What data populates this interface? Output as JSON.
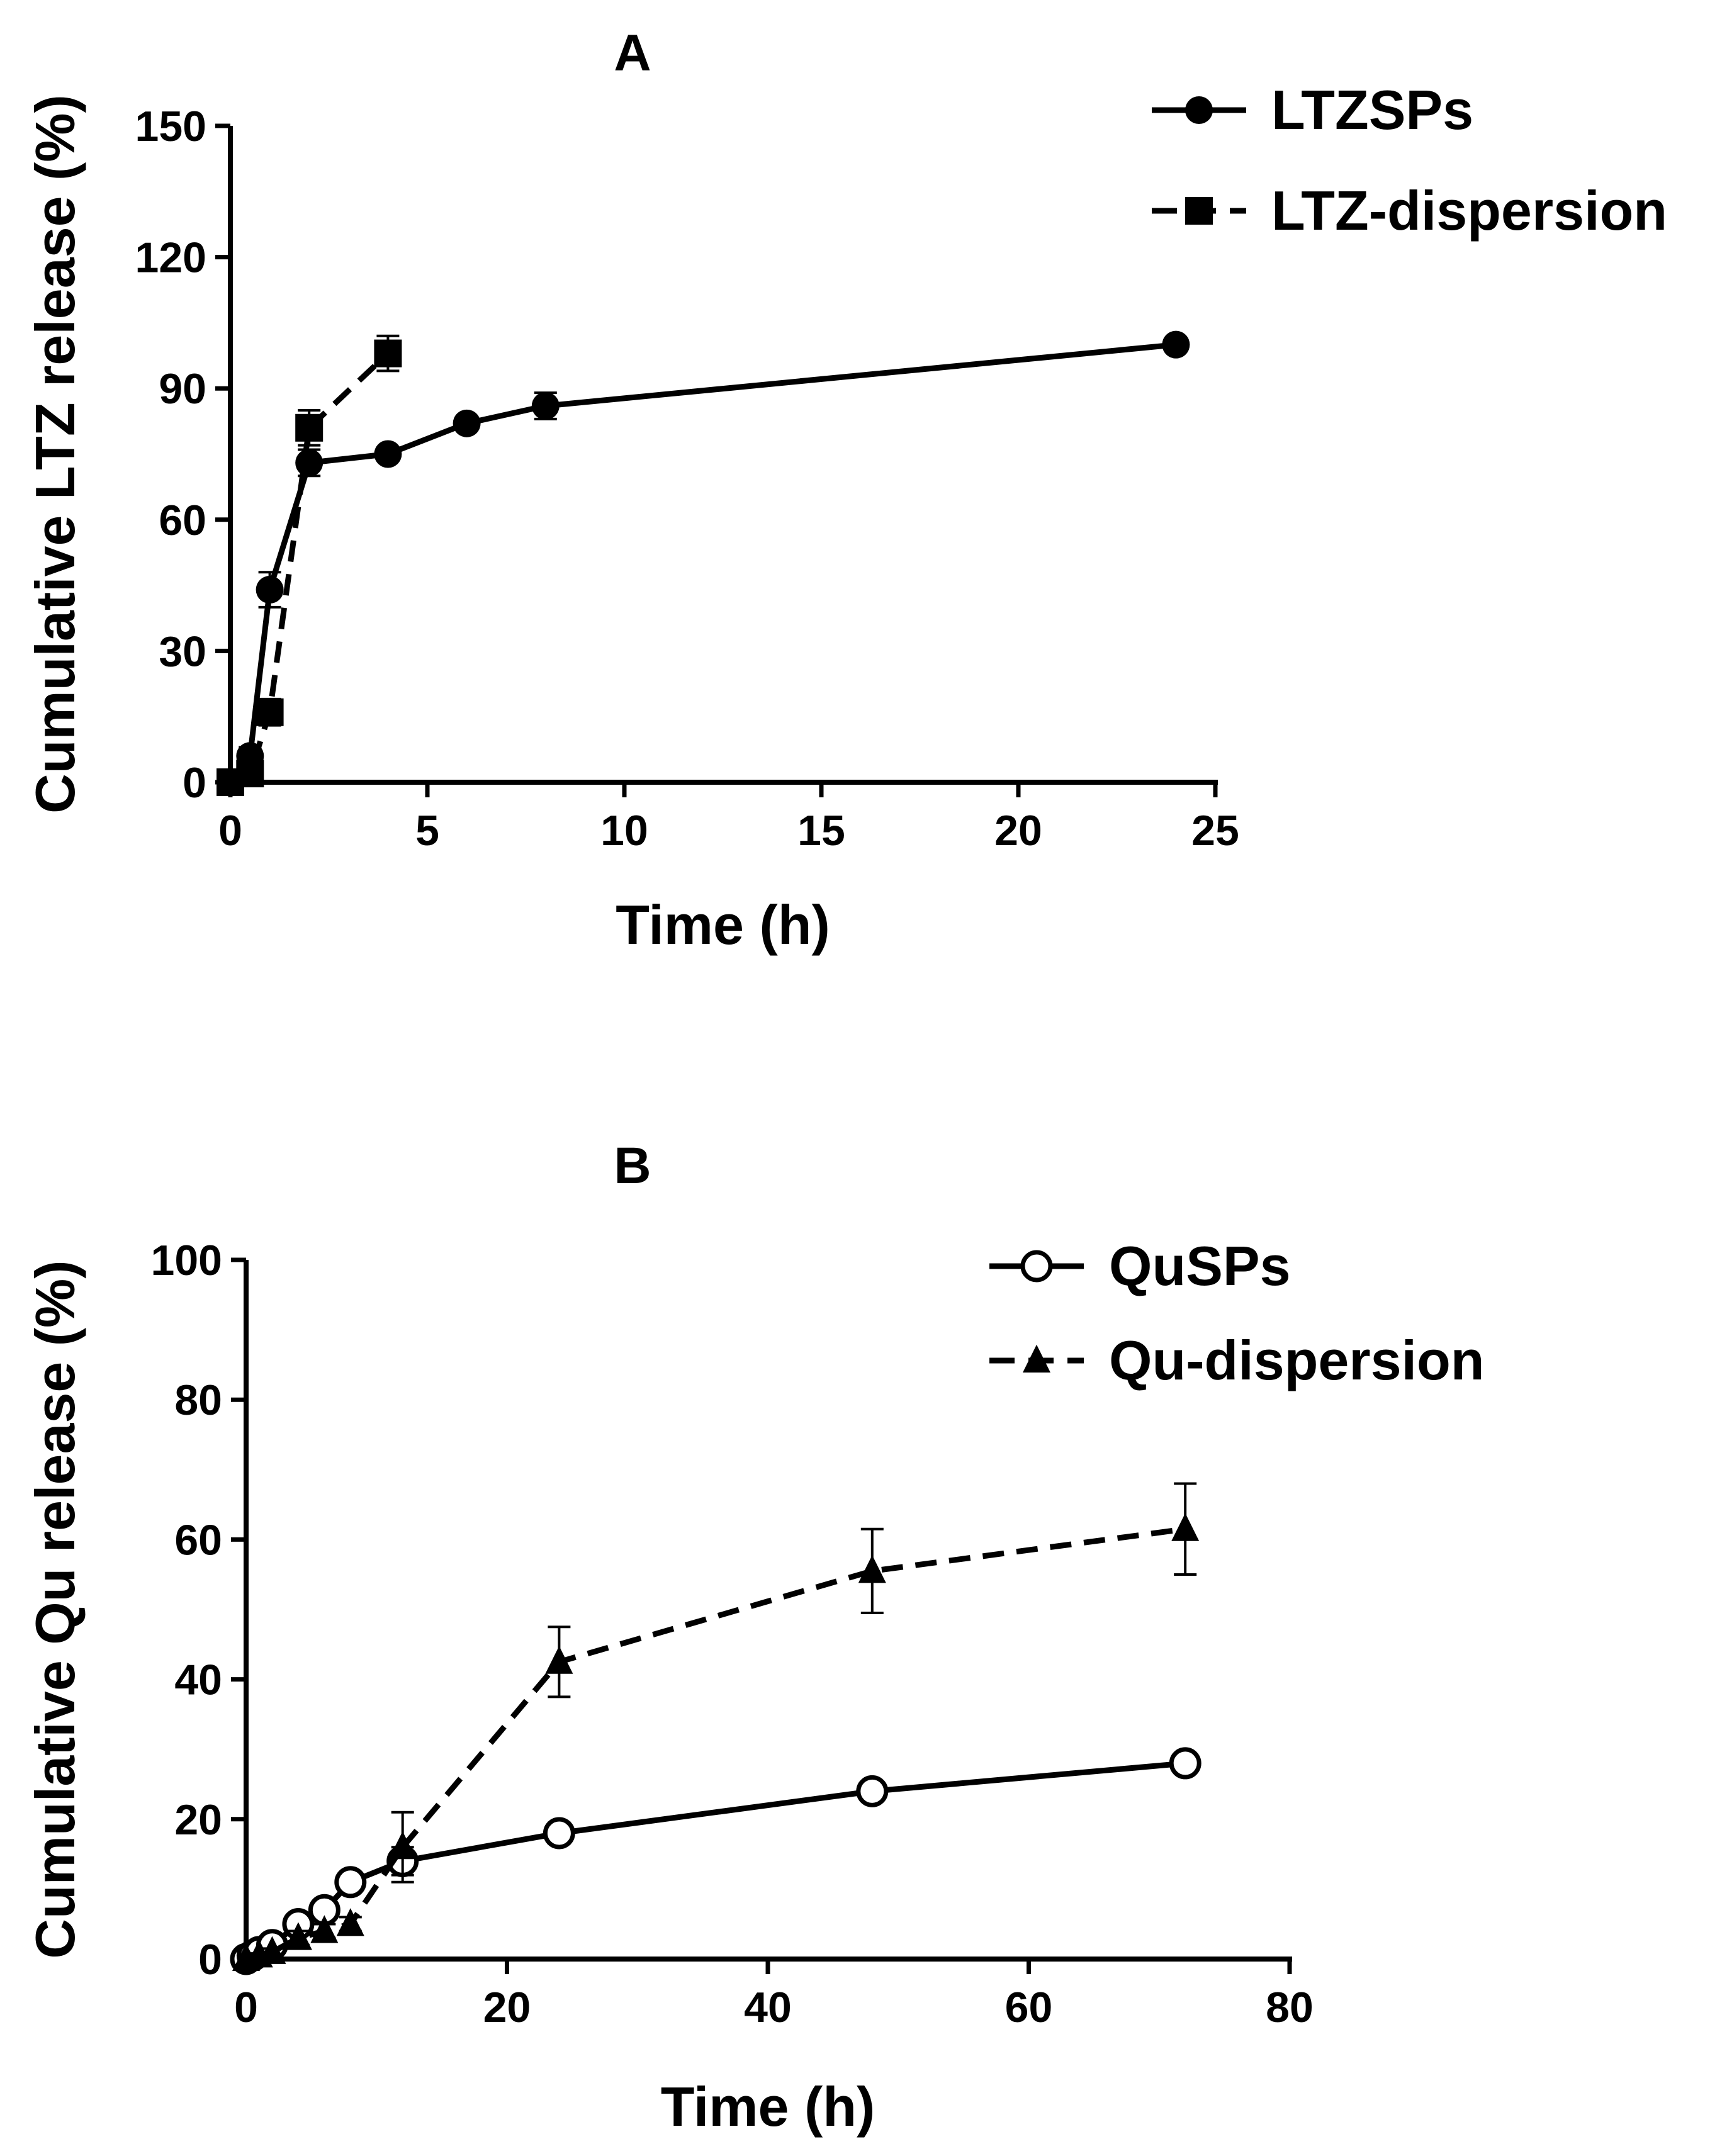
{
  "colors": {
    "ink": "#000000",
    "background": "#ffffff"
  },
  "chart_data": [
    {
      "type": "line",
      "title": "A",
      "xlabel": "Time (h)",
      "ylabel": "Cumulative LTZ release (%)",
      "xlim": [
        0,
        25
      ],
      "ylim": [
        0,
        150
      ],
      "xticks": [
        "0",
        "5",
        "10",
        "15",
        "20",
        "25"
      ],
      "yticks": [
        "0",
        "30",
        "60",
        "90",
        "120",
        "150"
      ],
      "grid": false,
      "legend_position": "top-right",
      "series": [
        {
          "name": "LTZSPs",
          "marker": "filled-circle",
          "line_style": "solid",
          "x": [
            0,
            0.5,
            1,
            2,
            4,
            6,
            8,
            24
          ],
          "y": [
            0,
            6,
            44,
            73,
            75,
            82,
            86,
            100
          ],
          "error": [
            0,
            2,
            4,
            3,
            1.5,
            1.5,
            3,
            1
          ]
        },
        {
          "name": "LTZ-dispersion",
          "marker": "filled-square",
          "line_style": "dashed",
          "x": [
            0,
            0.5,
            1,
            2,
            4
          ],
          "y": [
            0,
            2,
            16,
            81,
            98
          ],
          "error": [
            0,
            1,
            3,
            4,
            4
          ]
        }
      ]
    },
    {
      "type": "line",
      "title": "B",
      "xlabel": "Time (h)",
      "ylabel": "Cumulative Qu release (%)",
      "xlim": [
        0,
        80
      ],
      "ylim": [
        0,
        100
      ],
      "xticks": [
        "0",
        "20",
        "40",
        "60",
        "80"
      ],
      "yticks": [
        "0",
        "20",
        "40",
        "60",
        "80",
        "100"
      ],
      "grid": false,
      "legend_position": "top-right",
      "series": [
        {
          "name": "QuSPs",
          "marker": "open-circle",
          "line_style": "solid",
          "x": [
            0,
            0.5,
            1,
            2,
            4,
            6,
            8,
            12,
            24,
            48,
            72
          ],
          "y": [
            0,
            0.5,
            1,
            2,
            5,
            7,
            11,
            14,
            18,
            24,
            28
          ],
          "error": [
            0,
            0.3,
            0.5,
            0.5,
            1,
            1,
            1,
            2,
            1.5,
            1,
            1
          ]
        },
        {
          "name": "Qu-dispersion",
          "marker": "filled-triangle",
          "line_style": "dashed",
          "x": [
            0,
            1,
            2,
            4,
            6,
            8,
            12,
            24,
            48,
            72
          ],
          "y": [
            0,
            0.5,
            1,
            3,
            4,
            5,
            16,
            42.5,
            55.5,
            61.5
          ],
          "error": [
            0,
            0.3,
            0.5,
            1,
            1,
            1,
            5,
            5,
            6,
            6.5
          ]
        }
      ]
    }
  ]
}
